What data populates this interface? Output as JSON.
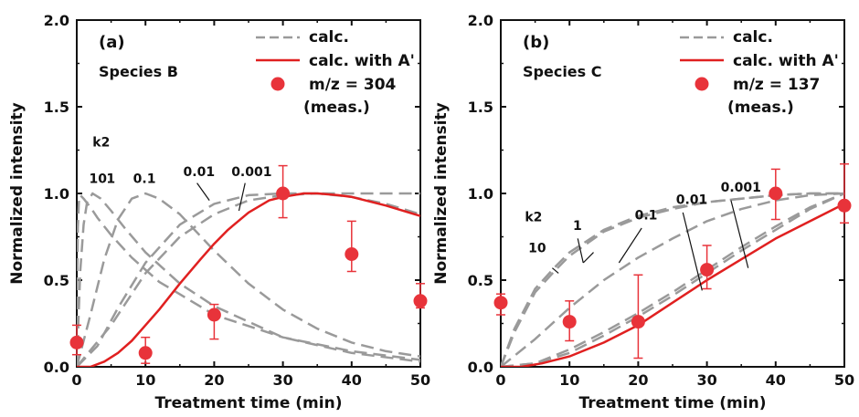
{
  "chart_data": [
    {
      "type": "line",
      "panel_label": "(a)",
      "species_label": "Species B",
      "xlabel": "Treatment time (min)",
      "ylabel": "Normalized intensity",
      "xlim": [
        0,
        50
      ],
      "ylim": [
        0,
        2.0
      ],
      "xticks": [
        "0",
        "10",
        "20",
        "30",
        "40",
        "50"
      ],
      "yticks": [
        "0.0",
        "0.5",
        "1.0",
        "1.5",
        "2.0"
      ],
      "legend": {
        "position": "top-right",
        "entries": [
          {
            "key": "calc",
            "label": "calc.",
            "style": "dashed",
            "color": "#9a9a9a"
          },
          {
            "key": "calcA",
            "label": "calc. with A'",
            "style": "solid",
            "color": "#e02020"
          },
          {
            "key": "meas",
            "label": "m/z = 304",
            "label2": "(meas.)",
            "style": "marker",
            "color": "#e8333a"
          }
        ]
      },
      "k2_title": "k2",
      "series": [
        {
          "name": "10",
          "style": "dashed",
          "color": "#9a9a9a",
          "x": [
            0,
            0.05,
            0.15,
            0.3,
            0.5,
            1,
            2,
            3,
            5,
            8,
            12,
            20,
            30,
            40,
            50
          ],
          "y": [
            0,
            0.45,
            0.8,
            0.95,
            0.99,
            0.97,
            0.92,
            0.86,
            0.76,
            0.63,
            0.49,
            0.3,
            0.17,
            0.09,
            0.04
          ]
        },
        {
          "name": "1",
          "style": "dashed",
          "color": "#9a9a9a",
          "x": [
            0,
            0.5,
            1,
            1.5,
            2.3,
            3.5,
            5,
            7,
            10,
            15,
            20,
            30,
            40,
            50
          ],
          "y": [
            0,
            0.55,
            0.82,
            0.95,
            1.0,
            0.97,
            0.9,
            0.8,
            0.66,
            0.48,
            0.35,
            0.17,
            0.08,
            0.03
          ]
        },
        {
          "name": "0.1",
          "style": "dashed",
          "color": "#9a9a9a",
          "x": [
            0,
            2,
            4,
            6,
            8,
            10,
            12,
            15,
            20,
            25,
            30,
            35,
            40,
            45,
            50
          ],
          "y": [
            0,
            0.3,
            0.62,
            0.85,
            0.97,
            1.0,
            0.97,
            0.88,
            0.67,
            0.48,
            0.33,
            0.22,
            0.14,
            0.09,
            0.06
          ]
        },
        {
          "name": "0.01",
          "style": "dashed",
          "color": "#9a9a9a",
          "x": [
            0,
            3,
            6,
            10,
            15,
            20,
            25,
            30,
            35,
            40,
            45,
            50
          ],
          "y": [
            0,
            0.12,
            0.34,
            0.6,
            0.82,
            0.94,
            0.99,
            1.0,
            1.0,
            1.0,
            1.0,
            1.0
          ]
        },
        {
          "name": "0.001",
          "style": "dashed",
          "color": "#9a9a9a",
          "x": [
            0,
            5,
            10,
            15,
            20,
            25,
            30,
            35,
            40,
            45,
            50
          ],
          "y": [
            0,
            0.24,
            0.54,
            0.75,
            0.88,
            0.96,
            0.99,
            1.0,
            0.98,
            0.94,
            0.88
          ]
        },
        {
          "name": "calc. with A'",
          "style": "solid",
          "color": "#e02020",
          "x": [
            0,
            2,
            4,
            6,
            8,
            10,
            12,
            15,
            18,
            20,
            22,
            25,
            28,
            30,
            33,
            35,
            38,
            40,
            45,
            50
          ],
          "y": [
            0,
            0.0,
            0.03,
            0.08,
            0.15,
            0.24,
            0.33,
            0.48,
            0.62,
            0.71,
            0.79,
            0.89,
            0.96,
            0.98,
            1.0,
            1.0,
            0.99,
            0.98,
            0.93,
            0.87
          ]
        }
      ],
      "curve_labels": [
        {
          "text": "k2",
          "x": 2.3,
          "y": 1.27
        },
        {
          "text": "10",
          "x": 1.8,
          "y": 1.06
        },
        {
          "text": "1",
          "x": 4.3,
          "y": 1.06
        },
        {
          "text": "0.1",
          "x": 8.2,
          "y": 1.06
        },
        {
          "text": "0.01",
          "x": 15.5,
          "y": 1.1
        },
        {
          "text": "0.001",
          "x": 22.5,
          "y": 1.1
        }
      ],
      "leaders": [
        {
          "x1": 17.5,
          "y1": 1.06,
          "x2": 19.3,
          "y2": 0.96
        },
        {
          "x1": 24.5,
          "y1": 1.06,
          "x2": 23.6,
          "y2": 0.9
        }
      ],
      "points": [
        {
          "x": 0,
          "y": 0.14,
          "err_low": 0.07,
          "err_high": 0.24
        },
        {
          "x": 10,
          "y": 0.08,
          "err_low": 0.02,
          "err_high": 0.17
        },
        {
          "x": 20,
          "y": 0.3,
          "err_low": 0.16,
          "err_high": 0.36
        },
        {
          "x": 30,
          "y": 1.0,
          "err_low": 0.86,
          "err_high": 1.16
        },
        {
          "x": 40,
          "y": 0.65,
          "err_low": 0.55,
          "err_high": 0.84
        },
        {
          "x": 50,
          "y": 0.38,
          "err_low": 0.34,
          "err_high": 0.48
        }
      ]
    },
    {
      "type": "line",
      "panel_label": "(b)",
      "species_label": "Species C",
      "xlabel": "Treatment time (min)",
      "ylabel": "Normalized intensity",
      "xlim": [
        0,
        50
      ],
      "ylim": [
        0,
        2.0
      ],
      "xticks": [
        "0",
        "10",
        "20",
        "30",
        "40",
        "50"
      ],
      "yticks": [
        "0.0",
        "0.5",
        "1.0",
        "1.5",
        "2.0"
      ],
      "legend": {
        "position": "top-right",
        "entries": [
          {
            "key": "calc",
            "label": "calc.",
            "style": "dashed",
            "color": "#9a9a9a"
          },
          {
            "key": "calcA",
            "label": "calc. with A'",
            "style": "solid",
            "color": "#e02020"
          },
          {
            "key": "meas",
            "label": "m/z = 137",
            "label2": "(meas.)",
            "style": "marker",
            "color": "#e8333a"
          }
        ]
      },
      "k2_title": "k2",
      "series": [
        {
          "name": "10",
          "style": "dashed",
          "color": "#9a9a9a",
          "x": [
            0,
            2,
            5,
            8,
            10,
            15,
            20,
            25,
            30,
            35,
            40,
            45,
            50
          ],
          "y": [
            0,
            0.22,
            0.45,
            0.58,
            0.66,
            0.79,
            0.87,
            0.92,
            0.95,
            0.97,
            0.99,
            1.0,
            1.0
          ]
        },
        {
          "name": "1",
          "style": "dashed",
          "color": "#9a9a9a",
          "x": [
            0,
            2,
            5,
            8,
            10,
            15,
            20,
            25,
            30,
            35,
            40,
            45,
            50
          ],
          "y": [
            0,
            0.2,
            0.43,
            0.56,
            0.64,
            0.78,
            0.86,
            0.91,
            0.95,
            0.97,
            0.99,
            1.0,
            1.0
          ]
        },
        {
          "name": "0.1",
          "style": "dashed",
          "color": "#9a9a9a",
          "x": [
            0,
            5,
            10,
            15,
            20,
            25,
            30,
            35,
            40,
            45,
            50
          ],
          "y": [
            0,
            0.16,
            0.34,
            0.5,
            0.63,
            0.74,
            0.84,
            0.91,
            0.96,
            0.99,
            1.0
          ]
        },
        {
          "name": "0.01",
          "style": "dashed",
          "color": "#9a9a9a",
          "x": [
            0,
            5,
            10,
            15,
            20,
            25,
            30,
            35,
            40,
            45,
            50
          ],
          "y": [
            0,
            0.02,
            0.1,
            0.2,
            0.31,
            0.43,
            0.56,
            0.69,
            0.81,
            0.92,
            1.0
          ]
        },
        {
          "name": "0.001",
          "style": "dashed",
          "color": "#9a9a9a",
          "x": [
            0,
            5,
            10,
            15,
            20,
            25,
            30,
            35,
            40,
            45,
            50
          ],
          "y": [
            0,
            0.02,
            0.08,
            0.18,
            0.29,
            0.41,
            0.54,
            0.67,
            0.79,
            0.91,
            1.0
          ]
        },
        {
          "name": "calc. with A'",
          "style": "solid",
          "color": "#e02020",
          "x": [
            0,
            3,
            6,
            10,
            15,
            20,
            25,
            30,
            35,
            40,
            45,
            50
          ],
          "y": [
            0,
            0.0,
            0.02,
            0.06,
            0.14,
            0.24,
            0.37,
            0.5,
            0.62,
            0.74,
            0.84,
            0.94
          ]
        }
      ],
      "curve_labels": [
        {
          "text": "k2",
          "x": 3.5,
          "y": 0.84
        },
        {
          "text": "10",
          "x": 4.0,
          "y": 0.66
        },
        {
          "text": "1",
          "x": 10.5,
          "y": 0.79
        },
        {
          "text": "0.1",
          "x": 19.5,
          "y": 0.85
        },
        {
          "text": "0.01",
          "x": 25.5,
          "y": 0.94
        },
        {
          "text": "0.001",
          "x": 32.0,
          "y": 1.01
        }
      ],
      "leaders": [
        {
          "x1": 7.5,
          "y1": 0.57,
          "x2": 8.4,
          "y2": 0.54
        },
        {
          "x1": 11.2,
          "y1": 0.74,
          "x2": 12.0,
          "y2": 0.6
        },
        {
          "x1": 12.0,
          "y1": 0.6,
          "x2": 13.5,
          "y2": 0.66
        },
        {
          "x1": 20.5,
          "y1": 0.8,
          "x2": 17.2,
          "y2": 0.6
        },
        {
          "x1": 26.5,
          "y1": 0.89,
          "x2": 29.3,
          "y2": 0.44
        },
        {
          "x1": 33.5,
          "y1": 0.96,
          "x2": 36.0,
          "y2": 0.57
        }
      ],
      "points": [
        {
          "x": 0,
          "y": 0.37,
          "err_low": 0.3,
          "err_high": 0.42
        },
        {
          "x": 10,
          "y": 0.26,
          "err_low": 0.15,
          "err_high": 0.38
        },
        {
          "x": 20,
          "y": 0.26,
          "err_low": 0.05,
          "err_high": 0.53
        },
        {
          "x": 30,
          "y": 0.56,
          "err_low": 0.45,
          "err_high": 0.7
        },
        {
          "x": 40,
          "y": 1.0,
          "err_low": 0.85,
          "err_high": 1.14
        },
        {
          "x": 50,
          "y": 0.93,
          "err_low": 0.83,
          "err_high": 1.17
        }
      ]
    }
  ]
}
